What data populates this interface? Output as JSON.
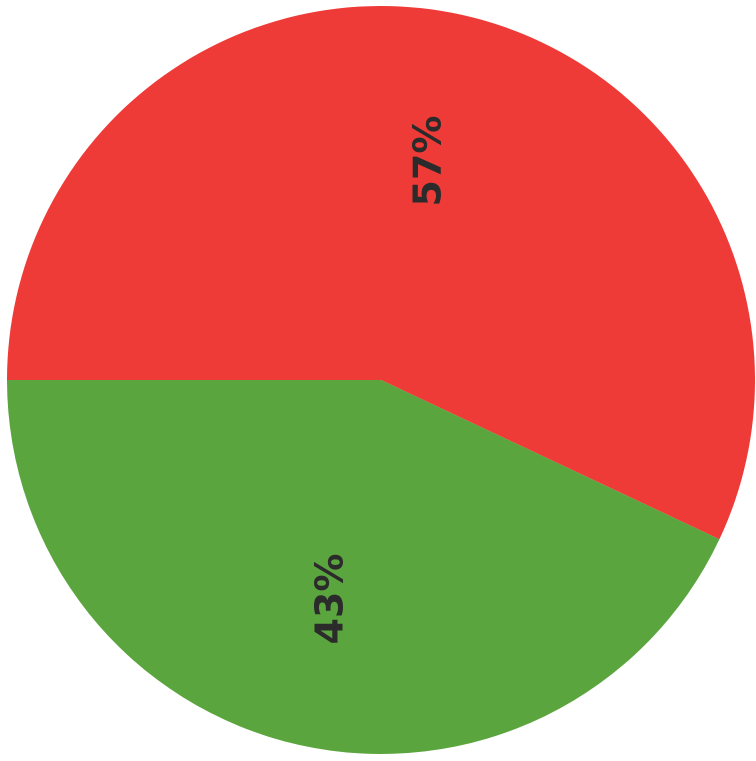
{
  "chart_data": {
    "type": "pie",
    "values": [
      57,
      43
    ],
    "value_labels": [
      "57%",
      "43%"
    ],
    "colors": [
      "#ef3b37",
      "#5ba53f"
    ]
  }
}
